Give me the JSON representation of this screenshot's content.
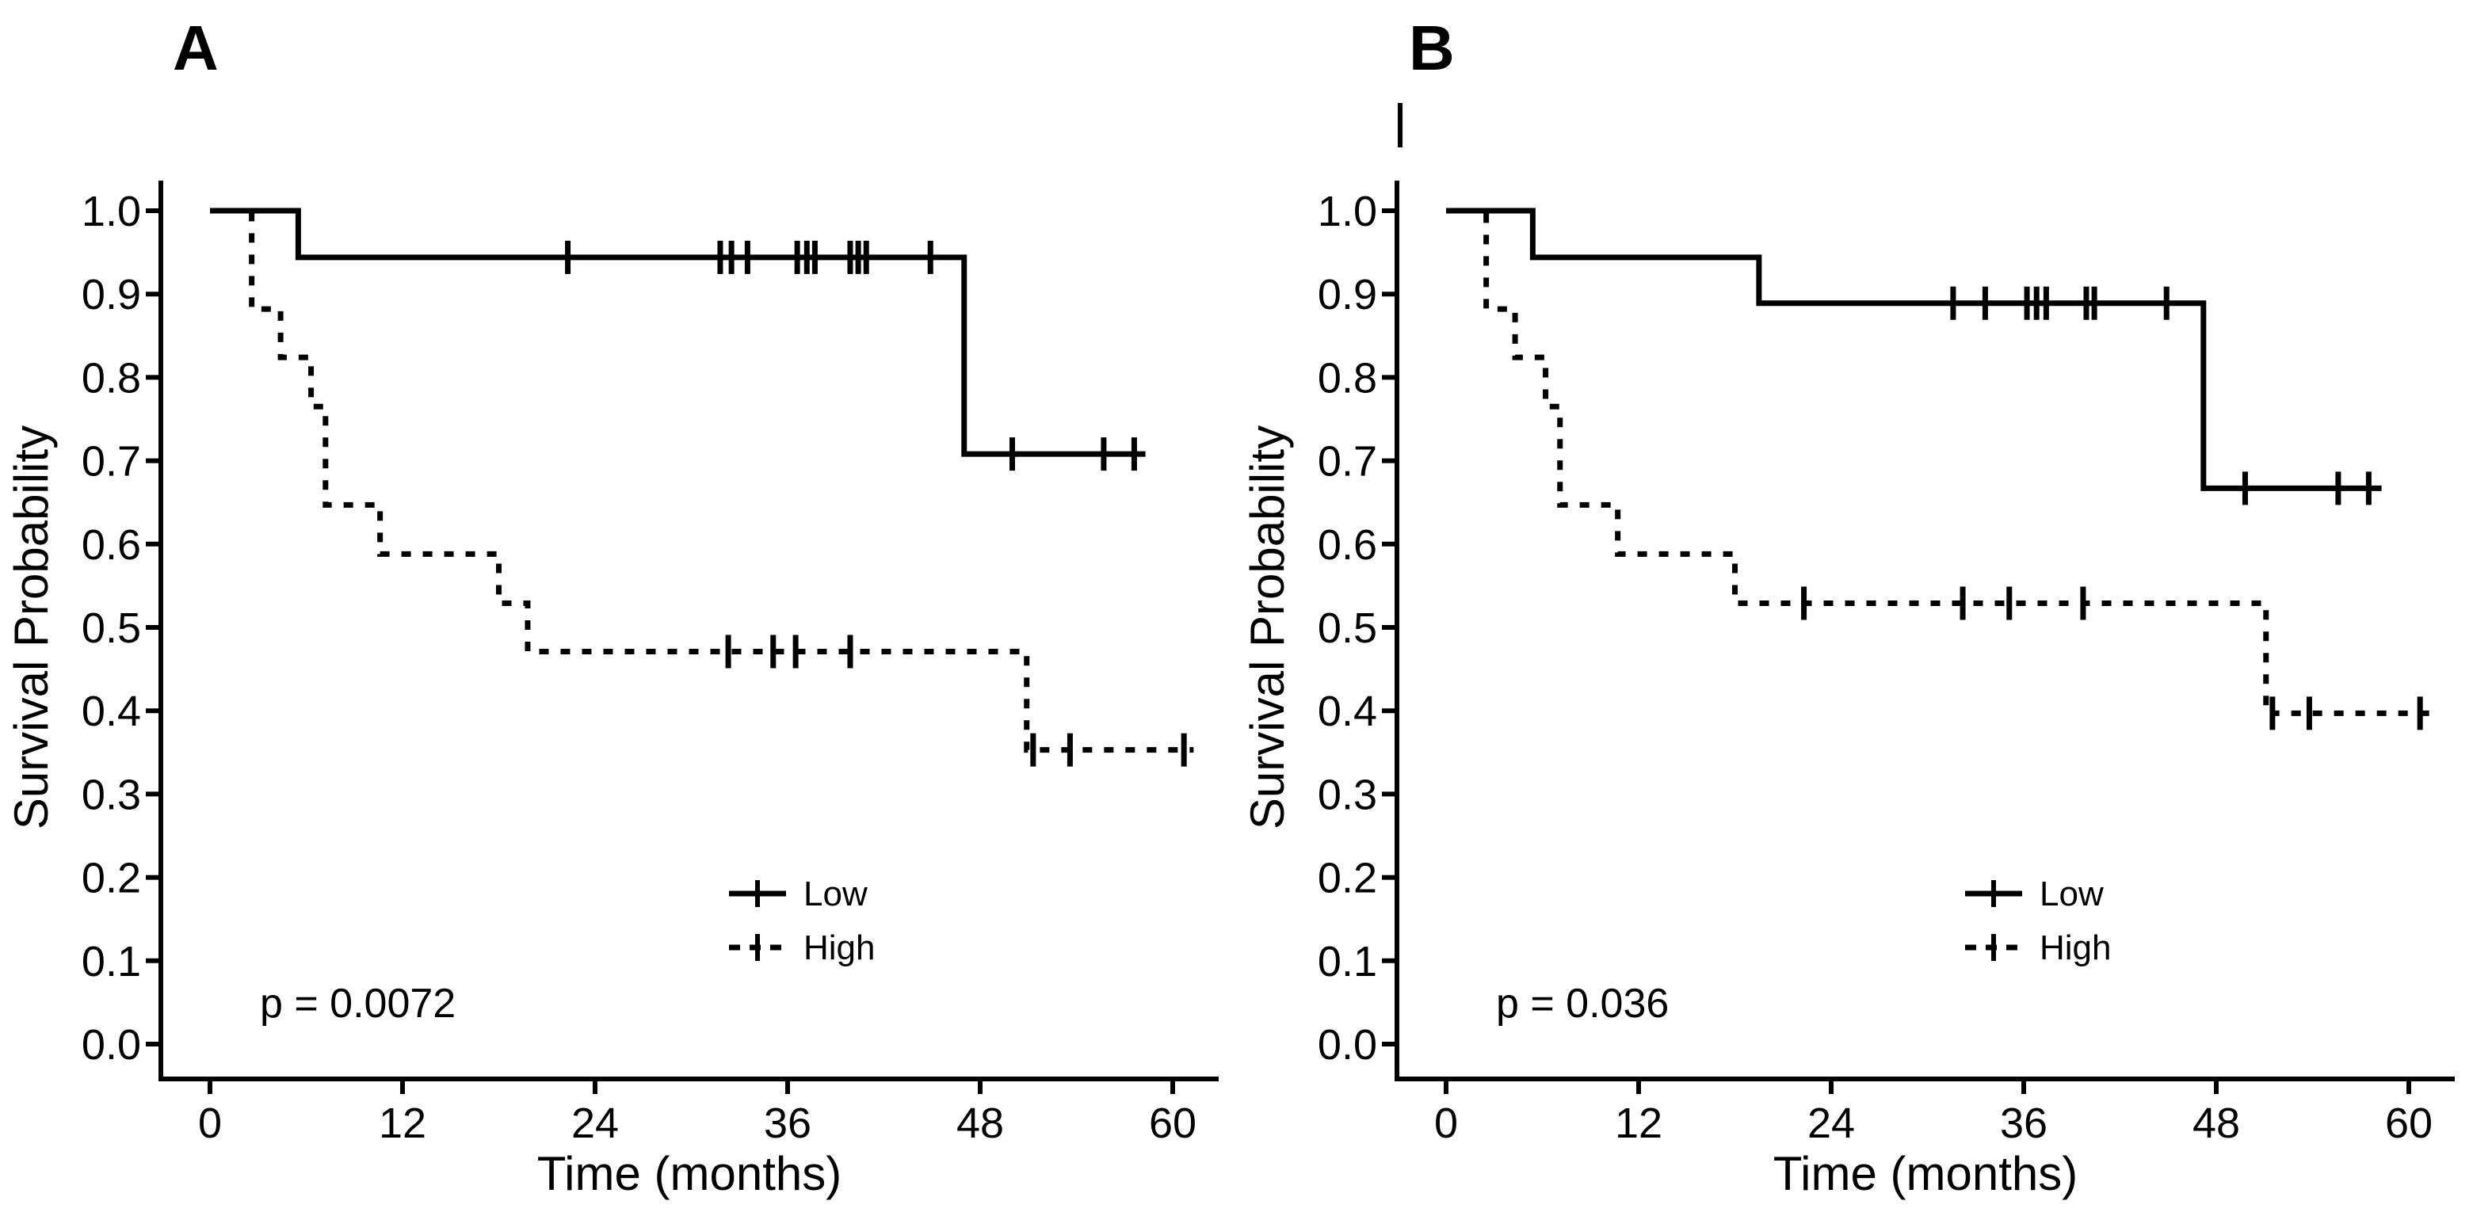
{
  "figure": {
    "background": "#ffffff",
    "ink_color": "#000000",
    "description": "Two-panel Kaplan-Meier survival curves comparing Low and High groups"
  },
  "chart_data": [
    {
      "type": "line",
      "subtype": "kaplan-meier-step",
      "panel_label": "A",
      "xlabel": "Time (months)",
      "ylabel": "Survival Probability",
      "p_value_text": "p = 0.0072",
      "xticks": [
        0,
        12,
        24,
        36,
        48,
        60
      ],
      "ytick_labels": [
        "1.0",
        "0.9",
        "0.8",
        "0.7",
        "0.6",
        "0.5",
        "0.4",
        "0.3",
        "0.2",
        "0.1",
        "0.0"
      ],
      "xlim": [
        -3,
        63
      ],
      "ylim": [
        0.0,
        1.0
      ],
      "grid": false,
      "legend_position": "inside-lower-middle",
      "legend": [
        {
          "label": "Low",
          "line": "solid"
        },
        {
          "label": "High",
          "line": "dashed"
        }
      ],
      "artifact_mark_above_axis": false,
      "series": [
        {
          "name": "High",
          "line": "dashed",
          "steps": [
            [
              0,
              1.0
            ],
            [
              2.6,
              0.882
            ],
            [
              4.4,
              0.824
            ],
            [
              6.3,
              0.765
            ],
            [
              7.2,
              0.647
            ],
            [
              10.6,
              0.588
            ],
            [
              18.0,
              0.529
            ],
            [
              19.8,
              0.471
            ],
            [
              50.9,
              0.353
            ]
          ],
          "end_time": 61.3,
          "censor_marks": [
            [
              32.3,
              0.471
            ],
            [
              35.1,
              0.471
            ],
            [
              36.5,
              0.471
            ],
            [
              39.9,
              0.471
            ],
            [
              51.3,
              0.353
            ],
            [
              53.6,
              0.353
            ],
            [
              60.7,
              0.353
            ]
          ]
        },
        {
          "name": "Low",
          "line": "solid",
          "steps": [
            [
              0,
              1.0
            ],
            [
              5.5,
              0.944
            ],
            [
              47.0,
              0.708
            ]
          ],
          "end_time": 58.3,
          "censor_marks": [
            [
              22.3,
              0.944
            ],
            [
              31.8,
              0.944
            ],
            [
              32.5,
              0.944
            ],
            [
              33.5,
              0.944
            ],
            [
              36.6,
              0.944
            ],
            [
              37.2,
              0.944
            ],
            [
              37.7,
              0.944
            ],
            [
              39.9,
              0.944
            ],
            [
              40.4,
              0.944
            ],
            [
              40.9,
              0.944
            ],
            [
              44.9,
              0.944
            ],
            [
              50.0,
              0.708
            ],
            [
              55.7,
              0.708
            ],
            [
              57.6,
              0.708
            ]
          ]
        }
      ]
    },
    {
      "type": "line",
      "subtype": "kaplan-meier-step",
      "panel_label": "B",
      "xlabel": "Time (months)",
      "ylabel": "Survival Probability",
      "p_value_text": "p = 0.036",
      "xticks": [
        0,
        12,
        24,
        36,
        48,
        60
      ],
      "ytick_labels": [
        "1.0",
        "0.9",
        "0.8",
        "0.7",
        "0.6",
        "0.5",
        "0.4",
        "0.3",
        "0.2",
        "0.1",
        "0.0"
      ],
      "xlim": [
        -3,
        63
      ],
      "ylim": [
        0.0,
        1.0
      ],
      "grid": false,
      "legend_position": "inside-lower-middle",
      "legend": [
        {
          "label": "Low",
          "line": "solid"
        },
        {
          "label": "High",
          "line": "dashed"
        }
      ],
      "artifact_mark_above_axis": true,
      "series": [
        {
          "name": "High",
          "line": "dashed",
          "steps": [
            [
              0,
              1.0
            ],
            [
              2.5,
              0.882
            ],
            [
              4.3,
              0.824
            ],
            [
              6.2,
              0.765
            ],
            [
              7.1,
              0.647
            ],
            [
              10.7,
              0.588
            ],
            [
              18.0,
              0.529
            ],
            [
              51.1,
              0.397
            ]
          ],
          "end_time": 61.5,
          "censor_marks": [
            [
              22.3,
              0.529
            ],
            [
              32.2,
              0.529
            ],
            [
              35.1,
              0.529
            ],
            [
              39.7,
              0.529
            ],
            [
              51.5,
              0.397
            ],
            [
              53.8,
              0.397
            ],
            [
              60.7,
              0.397
            ]
          ]
        },
        {
          "name": "Low",
          "line": "solid",
          "steps": [
            [
              0,
              1.0
            ],
            [
              5.4,
              0.944
            ],
            [
              19.5,
              0.889
            ],
            [
              47.2,
              0.667
            ]
          ],
          "end_time": 58.3,
          "censor_marks": [
            [
              31.6,
              0.889
            ],
            [
              33.6,
              0.889
            ],
            [
              36.2,
              0.889
            ],
            [
              36.8,
              0.889
            ],
            [
              37.4,
              0.889
            ],
            [
              39.9,
              0.889
            ],
            [
              40.4,
              0.889
            ],
            [
              44.9,
              0.889
            ],
            [
              49.8,
              0.667
            ],
            [
              55.6,
              0.667
            ],
            [
              57.5,
              0.667
            ]
          ]
        }
      ]
    }
  ]
}
